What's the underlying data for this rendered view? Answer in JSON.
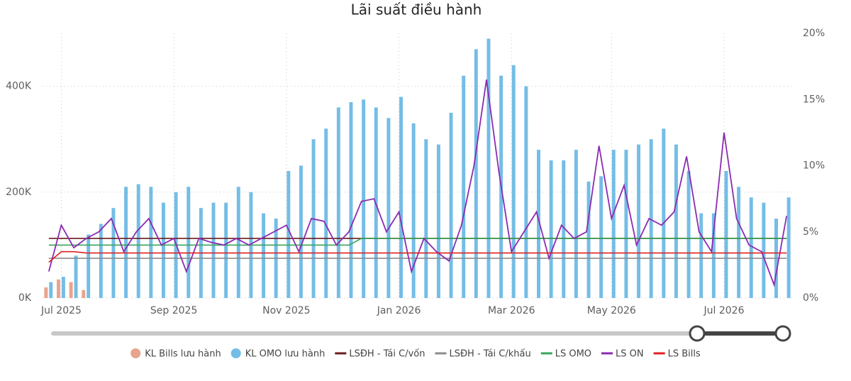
{
  "chart_data": {
    "type": "combo",
    "title": "Lãi suất điều hành",
    "categories": [
      null,
      "Jul 2025",
      null,
      null,
      null,
      null,
      null,
      null,
      null,
      null,
      "Sep 2025",
      null,
      null,
      null,
      null,
      null,
      null,
      null,
      null,
      "Nov 2025",
      null,
      null,
      null,
      null,
      null,
      null,
      null,
      null,
      "Jan 2026",
      null,
      null,
      null,
      null,
      null,
      null,
      null,
      null,
      "Mar 2026",
      null,
      null,
      null,
      null,
      null,
      null,
      null,
      "May 2026",
      null,
      null,
      null,
      null,
      null,
      null,
      null,
      null,
      "Jul 2026",
      null,
      null,
      null,
      null,
      null
    ],
    "ylim": [
      0,
      500000
    ],
    "yticks": [
      {
        "value": 0,
        "label": "0K"
      },
      {
        "value": 200000,
        "label": "200K"
      },
      {
        "value": 400000,
        "label": "400K"
      }
    ],
    "y2lim": [
      0,
      20
    ],
    "y2ticks": [
      {
        "value": 0,
        "label": "0%"
      },
      {
        "value": 5,
        "label": "5%"
      },
      {
        "value": 10,
        "label": "10%"
      },
      {
        "value": 15,
        "label": "15%"
      },
      {
        "value": 20,
        "label": "20%"
      }
    ],
    "grid": true,
    "series": [
      {
        "name": "KL Bills lưu hành",
        "type": "bar",
        "color": "#e8a48c",
        "values": [
          20000,
          35000,
          30000,
          15000,
          null,
          null,
          null,
          null,
          null,
          null,
          null,
          null,
          null,
          null,
          null,
          null,
          null,
          null,
          null,
          null,
          null,
          null,
          null,
          null,
          null,
          null,
          null,
          null,
          null,
          null,
          null,
          null,
          null,
          null,
          null,
          null,
          null,
          null,
          null,
          null,
          null,
          null,
          null,
          null,
          null,
          null,
          null,
          null,
          null,
          null,
          null,
          null,
          null,
          null,
          null,
          null,
          null,
          null,
          null,
          null
        ]
      },
      {
        "name": "KL OMO lưu hành",
        "type": "bar",
        "color": "#74bde6",
        "values": [
          30000,
          40000,
          80000,
          120000,
          140000,
          170000,
          210000,
          215000,
          210000,
          180000,
          200000,
          210000,
          170000,
          180000,
          180000,
          210000,
          200000,
          160000,
          150000,
          240000,
          250000,
          300000,
          320000,
          360000,
          370000,
          375000,
          360000,
          340000,
          380000,
          330000,
          300000,
          290000,
          350000,
          420000,
          470000,
          490000,
          420000,
          440000,
          400000,
          280000,
          260000,
          260000,
          280000,
          220000,
          230000,
          280000,
          280000,
          290000,
          300000,
          320000,
          290000,
          240000,
          160000,
          160000,
          240000,
          210000,
          190000,
          180000,
          150000,
          190000
        ]
      },
      {
        "name": "LSĐH - Tái C/vốn",
        "type": "line",
        "axis": "y2",
        "color": "#6b1d1d",
        "values": [
          4.5,
          4.5,
          4.5,
          4.5,
          4.5,
          4.5,
          4.5,
          4.5,
          4.5,
          4.5,
          4.5,
          4.5,
          4.5,
          4.5,
          4.5,
          4.5,
          4.5,
          4.5,
          4.5,
          4.5,
          4.5,
          4.5,
          4.5,
          4.5,
          4.5,
          4.5,
          4.5,
          4.5,
          4.5,
          4.5,
          4.5,
          4.5,
          4.5,
          4.5,
          4.5,
          4.5,
          4.5,
          4.5,
          4.5,
          4.5,
          4.5,
          4.5,
          4.5,
          4.5,
          4.5,
          4.5,
          4.5,
          4.5,
          4.5,
          4.5,
          4.5,
          4.5,
          4.5,
          4.5,
          4.5,
          4.5,
          4.5,
          4.5,
          4.5,
          4.5
        ]
      },
      {
        "name": "LSĐH - Tái C/khấu",
        "type": "line",
        "axis": "y2",
        "color": "#8c8c8c",
        "values": [
          3,
          3,
          3,
          3,
          3,
          3,
          3,
          3,
          3,
          3,
          3,
          3,
          3,
          3,
          3,
          3,
          3,
          3,
          3,
          3,
          3,
          3,
          3,
          3,
          3,
          3,
          3,
          3,
          3,
          3,
          3,
          3,
          3,
          3,
          3,
          3,
          3,
          3,
          3,
          3,
          3,
          3,
          3,
          3,
          3,
          3,
          3,
          3,
          3,
          3,
          3,
          3,
          3,
          3,
          3,
          3,
          3,
          3,
          3,
          3
        ]
      },
      {
        "name": "LS OMO",
        "type": "line",
        "axis": "y2",
        "color": "#3aa55a",
        "values": [
          4,
          4,
          4,
          4,
          4,
          4,
          4,
          4,
          4,
          4,
          4,
          4,
          4,
          4,
          4,
          4,
          4,
          4,
          4,
          4,
          4,
          4,
          4,
          4,
          4,
          4.5,
          4.5,
          4.5,
          4.5,
          4.5,
          4.5,
          4.5,
          4.5,
          4.5,
          4.5,
          4.5,
          4.5,
          4.5,
          4.5,
          4.5,
          4.5,
          4.5,
          4.5,
          4.5,
          4.5,
          4.5,
          4.5,
          4.5,
          4.5,
          4.5,
          4.5,
          4.5,
          4.5,
          4.5,
          4.5,
          4.5,
          4.5,
          4.5,
          4.5,
          4.5
        ]
      },
      {
        "name": "LS ON",
        "type": "line",
        "axis": "y2",
        "color": "#8b2bb0",
        "values": [
          2.0,
          5.5,
          3.8,
          4.5,
          5.0,
          6.0,
          3.5,
          5.0,
          6.0,
          4.0,
          4.5,
          2.0,
          4.5,
          4.2,
          4.0,
          4.5,
          4.0,
          4.5,
          5.0,
          5.5,
          3.5,
          6.0,
          5.8,
          4.0,
          5.0,
          7.3,
          7.5,
          5.0,
          6.5,
          2.0,
          4.5,
          3.5,
          2.8,
          5.5,
          10.0,
          16.5,
          9.5,
          3.5,
          5.0,
          6.5,
          3.0,
          5.5,
          4.5,
          5.0,
          11.5,
          6.0,
          8.5,
          4.0,
          6.0,
          5.5,
          6.5,
          10.7,
          5.0,
          3.5,
          12.5,
          6.0,
          4.0,
          3.5,
          1.0,
          6.2
        ]
      },
      {
        "name": "LS Bills",
        "type": "line",
        "axis": "y2",
        "color": "#e02020",
        "values": [
          2.7,
          3.5,
          3.5,
          3.4,
          3.4,
          3.4,
          3.4,
          3.4,
          3.4,
          3.4,
          3.4,
          3.4,
          3.4,
          3.4,
          3.4,
          3.4,
          3.4,
          3.4,
          3.4,
          3.4,
          3.4,
          3.4,
          3.4,
          3.4,
          3.4,
          3.4,
          3.4,
          3.4,
          3.4,
          3.4,
          3.4,
          3.4,
          3.4,
          3.4,
          3.4,
          3.4,
          3.4,
          3.4,
          3.4,
          3.4,
          3.4,
          3.4,
          3.4,
          3.4,
          3.4,
          3.4,
          3.4,
          3.4,
          3.4,
          3.4,
          3.4,
          3.4,
          3.4,
          3.4,
          3.4,
          3.4,
          3.4,
          3.4,
          3.4,
          3.4
        ]
      }
    ]
  }
}
